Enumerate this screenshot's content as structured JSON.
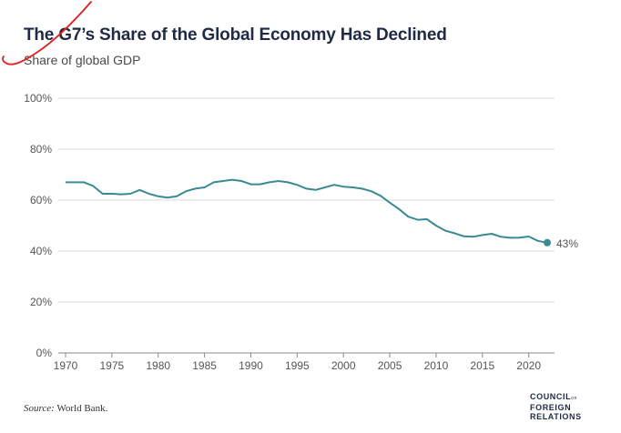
{
  "title": "The G7’s Share of the Global Economy Has Declined",
  "subtitle": "Share of global GDP",
  "source_label": "Source:",
  "source_text": "World Bank.",
  "logo": {
    "line1": "COUNCIL",
    "line1_small": "on",
    "line2": "FOREIGN",
    "line3": "RELATIONS"
  },
  "colors": {
    "line": "#3a8a93",
    "grid": "#d9d9d9",
    "axis": "#555555",
    "title": "#1f2a44",
    "scribble": "#e02020"
  },
  "chart_data": {
    "type": "line",
    "title": "The G7’s Share of the Global Economy Has Declined",
    "ylabel": "Share of global GDP",
    "xlabel": "",
    "ylim": [
      0,
      100
    ],
    "xlim": [
      1970,
      2022
    ],
    "yticks": [
      0,
      20,
      40,
      60,
      80,
      100
    ],
    "ytick_labels": [
      "0%",
      "20%",
      "40%",
      "60%",
      "80%",
      "100%"
    ],
    "xticks": [
      1970,
      1975,
      1980,
      1985,
      1990,
      1995,
      2000,
      2005,
      2010,
      2015,
      2020
    ],
    "xtick_labels": [
      "1970",
      "1975",
      "1980",
      "1985",
      "1990",
      "1995",
      "2000",
      "2005",
      "2010",
      "2015",
      "2020"
    ],
    "grid": "horizontal",
    "end_label": "43%",
    "series": [
      {
        "x": [
          1970,
          1971,
          1972,
          1973,
          1974,
          1975,
          1976,
          1977,
          1978,
          1979,
          1980,
          1981,
          1982,
          1983,
          1984,
          1985,
          1986,
          1987,
          1988,
          1989,
          1990,
          1991,
          1992,
          1993,
          1994,
          1995,
          1996,
          1997,
          1998,
          1999,
          2000,
          2001,
          2002,
          2003,
          2004,
          2005,
          2006,
          2007,
          2008,
          2009,
          2010,
          2011,
          2012,
          2013,
          2014,
          2015,
          2016,
          2017,
          2018,
          2019,
          2020,
          2021,
          2022
        ],
        "y": [
          67,
          67,
          67,
          65.5,
          62.5,
          62.5,
          62.3,
          62.5,
          64,
          62.5,
          61.5,
          61,
          61.5,
          63.5,
          64.5,
          65,
          67,
          67.5,
          68,
          67.5,
          66.2,
          66.2,
          67,
          67.5,
          67,
          66,
          64.5,
          64,
          65,
          66,
          65.3,
          65,
          64.5,
          63.5,
          61.7,
          59,
          56.5,
          53.5,
          52.3,
          52.5,
          50,
          48,
          47,
          45.8,
          45.6,
          46.3,
          46.8,
          45.6,
          45.2,
          45.3,
          45.7,
          44,
          43.3
        ]
      }
    ]
  }
}
